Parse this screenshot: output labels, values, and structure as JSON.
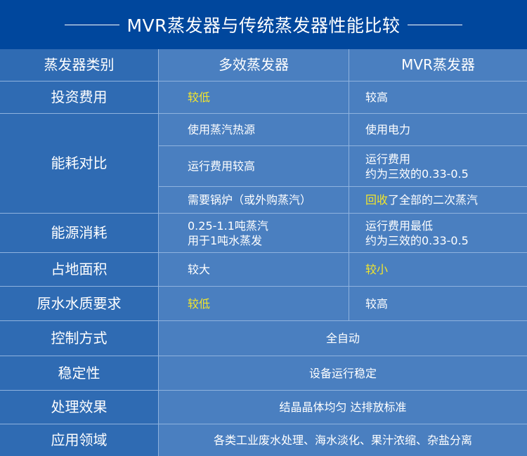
{
  "title": "MVR蒸发器与传统蒸发器性能比较",
  "colors": {
    "banner": "#00479d",
    "first_col": "#2f6bb3",
    "cell": "#4a7fc0",
    "highlight": "#f2e52c"
  },
  "headers": [
    "蒸发器类别",
    "多效蒸发器",
    "MVR蒸发器"
  ],
  "rows": {
    "investment": {
      "label": "投资费用",
      "multi": "较低",
      "mvr": "较高"
    },
    "energy": {
      "label": "能耗对比",
      "r1": {
        "multi": "使用蒸汽热源",
        "mvr": "使用电力"
      },
      "r2": {
        "multi": "运行费用较高",
        "mvr_l1": "运行费用",
        "mvr_l2": "约为三效的0.33-0.5"
      },
      "r3": {
        "multi": "需要锅炉（或外购蒸汽）",
        "mvr_hl": "回收",
        "mvr_rest": "了全部的二次蒸汽"
      }
    },
    "consumption": {
      "label": "能源消耗",
      "multi_l1": "0.25-1.1吨蒸汽",
      "multi_l2": "用于1吨水蒸发",
      "mvr_l1": "运行费用最低",
      "mvr_l2": "约为三效的0.33-0.5"
    },
    "footprint": {
      "label": "占地面积",
      "multi": "较大",
      "mvr": "较小"
    },
    "water": {
      "label": "原水水质要求",
      "multi": "较低",
      "mvr": "较高"
    },
    "control": {
      "label": "控制方式",
      "value": "全自动"
    },
    "stability": {
      "label": "稳定性",
      "value": "设备运行稳定"
    },
    "effect": {
      "label": "处理效果",
      "value": "结晶晶体均匀 达排放标准"
    },
    "application": {
      "label": "应用领域",
      "value": "各类工业废水处理、海水淡化、果汁浓缩、杂盐分离"
    }
  }
}
